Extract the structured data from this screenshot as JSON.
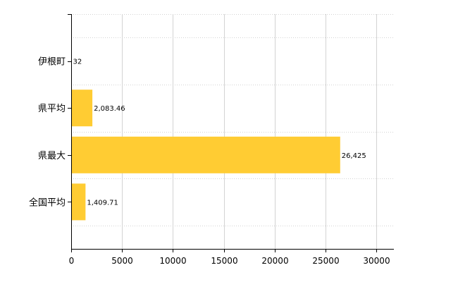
{
  "chart_data": {
    "type": "bar",
    "orientation": "horizontal",
    "categories": [
      "伊根町",
      "県平均",
      "県最大",
      "全国平均"
    ],
    "values": [
      32,
      2083.46,
      26425,
      1409.71
    ],
    "data_labels": [
      "32",
      "2,083.46",
      "26,425",
      "1,409.71"
    ],
    "title": "",
    "xlabel": "",
    "ylabel": "",
    "xlim": [
      0,
      30000
    ],
    "x_ticks": [
      0,
      5000,
      10000,
      15000,
      20000,
      25000,
      30000
    ],
    "x_tick_labels": [
      "0",
      "5000",
      "10000",
      "15000",
      "20000",
      "25000",
      "30000"
    ],
    "grid": true,
    "bar_color": "#FFCC33",
    "grid_color": "#D3D3D3",
    "axis_color": "#000000"
  }
}
